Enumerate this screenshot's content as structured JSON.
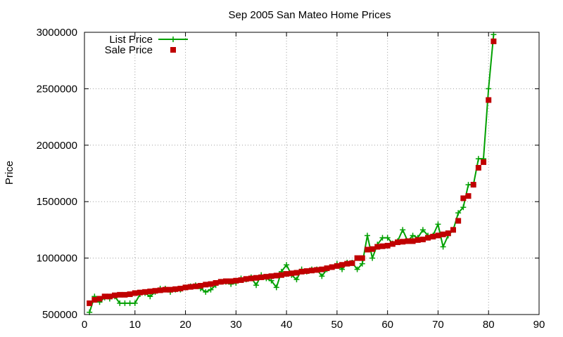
{
  "chart_data": {
    "type": "line",
    "title": "Sep 2005 San Mateo Home Prices",
    "xlabel": "",
    "ylabel": "Price",
    "xlim": [
      0,
      90
    ],
    "ylim": [
      500000,
      3000000
    ],
    "xticks": [
      0,
      10,
      20,
      30,
      40,
      50,
      60,
      70,
      80,
      90
    ],
    "yticks": [
      500000,
      1000000,
      1500000,
      2000000,
      2500000,
      3000000
    ],
    "grid": true,
    "legend_position": "top-left",
    "series": [
      {
        "name": "List Price",
        "style": "lines+crosses",
        "color": "#00a000",
        "x": [
          1,
          2,
          3,
          4,
          5,
          6,
          7,
          8,
          9,
          10,
          11,
          12,
          13,
          14,
          15,
          16,
          17,
          18,
          19,
          20,
          21,
          22,
          23,
          24,
          25,
          26,
          27,
          28,
          29,
          30,
          31,
          32,
          33,
          34,
          35,
          36,
          37,
          38,
          39,
          40,
          41,
          42,
          43,
          44,
          45,
          46,
          47,
          48,
          49,
          50,
          51,
          52,
          53,
          54,
          55,
          56,
          57,
          58,
          59,
          60,
          61,
          62,
          63,
          64,
          65,
          66,
          67,
          68,
          69,
          70,
          71,
          72,
          73,
          74,
          75,
          76,
          77,
          78,
          79,
          80,
          81
        ],
        "values": [
          520000,
          660000,
          610000,
          650000,
          640000,
          660000,
          600000,
          600000,
          600000,
          600000,
          680000,
          690000,
          660000,
          700000,
          730000,
          730000,
          700000,
          720000,
          720000,
          740000,
          750000,
          760000,
          730000,
          700000,
          720000,
          760000,
          790000,
          790000,
          770000,
          780000,
          820000,
          810000,
          830000,
          760000,
          850000,
          820000,
          800000,
          740000,
          880000,
          940000,
          850000,
          810000,
          900000,
          880000,
          900000,
          900000,
          840000,
          900000,
          920000,
          950000,
          900000,
          960000,
          960000,
          900000,
          950000,
          1200000,
          1000000,
          1120000,
          1180000,
          1180000,
          1130000,
          1150000,
          1250000,
          1150000,
          1200000,
          1180000,
          1250000,
          1200000,
          1200000,
          1300000,
          1100000,
          1200000,
          1250000,
          1400000,
          1450000,
          1650000,
          1650000,
          1880000,
          1880000,
          2500000,
          2980000
        ]
      },
      {
        "name": "Sale Price",
        "style": "points",
        "color": "#c00000",
        "x": [
          1,
          2,
          3,
          4,
          5,
          6,
          7,
          8,
          9,
          10,
          11,
          12,
          13,
          14,
          15,
          16,
          17,
          18,
          19,
          20,
          21,
          22,
          23,
          24,
          25,
          26,
          27,
          28,
          29,
          30,
          31,
          32,
          33,
          34,
          35,
          36,
          37,
          38,
          39,
          40,
          41,
          42,
          43,
          44,
          45,
          46,
          47,
          48,
          49,
          50,
          51,
          52,
          53,
          54,
          55,
          56,
          57,
          58,
          59,
          60,
          61,
          62,
          63,
          64,
          65,
          66,
          67,
          68,
          69,
          70,
          71,
          72,
          73,
          74,
          75,
          76,
          77,
          78,
          79,
          80,
          81
        ],
        "values": [
          600000,
          630000,
          640000,
          660000,
          660000,
          670000,
          675000,
          675000,
          680000,
          690000,
          695000,
          700000,
          705000,
          710000,
          715000,
          720000,
          720000,
          725000,
          730000,
          740000,
          745000,
          750000,
          755000,
          765000,
          770000,
          780000,
          790000,
          795000,
          795000,
          800000,
          805000,
          815000,
          820000,
          825000,
          830000,
          835000,
          840000,
          845000,
          850000,
          860000,
          865000,
          870000,
          880000,
          885000,
          890000,
          895000,
          900000,
          910000,
          920000,
          930000,
          940000,
          950000,
          955000,
          1000000,
          1000000,
          1075000,
          1080000,
          1100000,
          1105000,
          1110000,
          1125000,
          1140000,
          1145000,
          1150000,
          1150000,
          1160000,
          1165000,
          1180000,
          1190000,
          1200000,
          1210000,
          1220000,
          1250000,
          1330000,
          1530000,
          1550000,
          1650000,
          1800000,
          1850000,
          2400000,
          2920000
        ]
      }
    ]
  }
}
